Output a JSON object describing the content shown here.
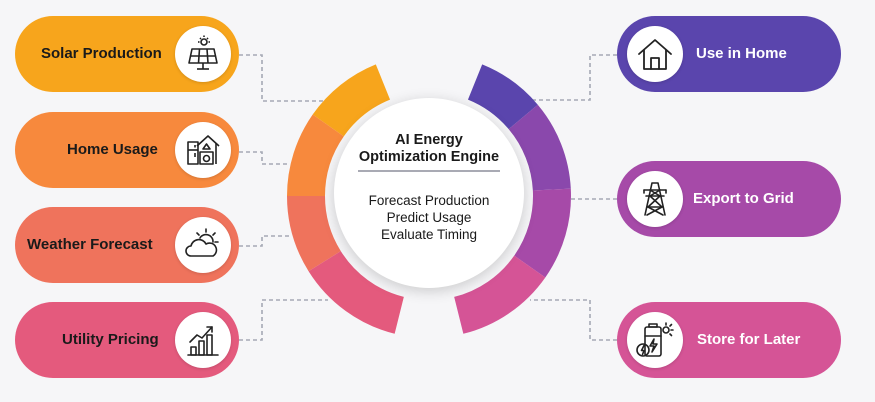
{
  "center": {
    "title": "AI Energy Optimization Engine",
    "steps": [
      "Forecast Production",
      "Predict Usage",
      "Evaluate Timing"
    ]
  },
  "inputs": [
    {
      "label": "Solar Production",
      "icon": "solar-panel-icon",
      "color": "#f7a51c"
    },
    {
      "label": "Home Usage",
      "icon": "appliances-icon",
      "color": "#f7893d"
    },
    {
      "label": "Weather Forecast",
      "icon": "cloud-sun-icon",
      "color": "#ef735c"
    },
    {
      "label": "Utility Pricing",
      "icon": "price-chart-icon",
      "color": "#e45a7d"
    }
  ],
  "outputs": [
    {
      "label": "Use in Home",
      "icon": "house-icon",
      "color": "#5a45ad"
    },
    {
      "label": "Export to Grid",
      "icon": "power-tower-icon",
      "color": "#a64aa8"
    },
    {
      "label": "Store for Later",
      "icon": "battery-icon",
      "color": "#d55496"
    }
  ],
  "colors": {
    "background": "#f6f6f8",
    "ring_left": [
      "#f7a51c",
      "#f7893d",
      "#ef735c",
      "#e45a7d"
    ],
    "ring_right": [
      "#5a45ad",
      "#8a48ac",
      "#a64aa8",
      "#d55496"
    ],
    "connector": "#a5a9b5"
  }
}
